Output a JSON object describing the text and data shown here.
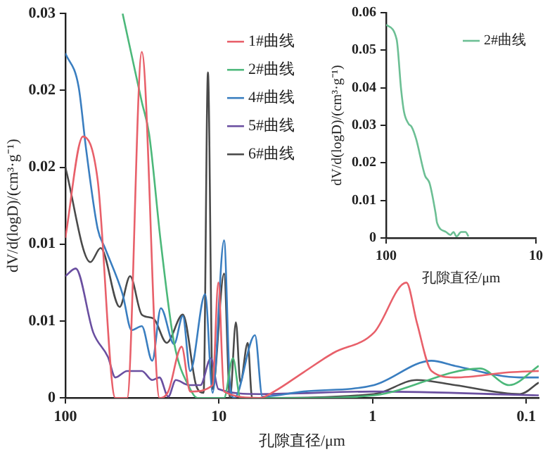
{
  "chart_data": [
    {
      "type": "line",
      "xlabel": "孔隙直径/μm",
      "ylabel": "dV/d(logD)/(cm³·g⁻¹)",
      "log": "x",
      "marker": "none",
      "legend": "top",
      "grid": false,
      "xlim": [
        100,
        0.083
      ],
      "xticks": [
        100,
        10,
        1,
        0.1
      ],
      "ylim": [
        0,
        0.03
      ],
      "yticks": [
        0,
        {
          "value": 0.006,
          "label": "0.01"
        },
        {
          "value": 0.012,
          "label": "0.01"
        },
        {
          "value": 0.018,
          "label": "0.02"
        },
        {
          "value": 0.024,
          "label": "0.02"
        },
        0.03
      ],
      "series": [
        {
          "name": "1#曲线",
          "color": "#e8606a",
          "x": [
            100,
            76.8,
            61.6,
            47.3,
            39.6,
            31.8,
            24.4,
            21.4,
            17.5,
            15.4,
            11.0,
            10.1,
            9.27,
            5.45,
            4.38,
            2.82,
            1.81,
            0.98,
            0.603,
            0.516,
            0.414,
            0.291,
            0.129,
            0.083
          ],
          "values": [
            0.0125,
            0.0204,
            0.017,
            0,
            0,
            0.027,
            0,
            0.0005,
            0.004,
            0.0005,
            0.001,
            0.009,
            0.0005,
            0,
            0.0005,
            0.002,
            0.0035,
            0.0051,
            0.009,
            0.0059,
            0.0021,
            0.0016,
            0.002,
            0.0021
          ]
        },
        {
          "name": "2#曲线",
          "color": "#4cb87a",
          "x": [
            42.4,
            31.8,
            28.5,
            23.9,
            19.6,
            15.4,
            13.8,
            9.27,
            8.11,
            7.26,
            2.82,
            0.98,
            0.2,
            0.129,
            0.083
          ],
          "values": [
            0.03,
            0.0231,
            0.0206,
            0.0121,
            0.0043,
            0.0007,
            0,
            0,
            0.0031,
            0,
            0,
            0.0002,
            0.0023,
            0.001,
            0.0025
          ]
        },
        {
          "name": "4#曲线",
          "color": "#3a7ec0",
          "x": [
            100,
            82,
            73.4,
            61.6,
            55.2,
            42.4,
            37.1,
            31.8,
            27.2,
            23.9,
            19.6,
            17.2,
            15.4,
            12.3,
            11.0,
            9.27,
            8.48,
            7.94,
            5.83,
            5.22,
            2.82,
            0.98,
            0.414,
            0.291,
            0.11,
            0.083
          ],
          "values": [
            0.0269,
            0.0243,
            0.0195,
            0.0132,
            0.0117,
            0.0081,
            0.0053,
            0.0056,
            0.0029,
            0.007,
            0.0042,
            0.0064,
            0.0021,
            0.0081,
            0.0004,
            0.0123,
            0.001,
            0,
            0.0049,
            0.0001,
            0.0005,
            0.001,
            0.0029,
            0.0025,
            0.0016,
            0.0016
          ]
        },
        {
          "name": "5#曲线",
          "color": "#6a4fa0",
          "x": [
            100,
            85.7,
            65.8,
            52.8,
            47.3,
            39.6,
            31.8,
            27.2,
            24.4,
            21.4,
            19.1,
            15.7,
            13.2,
            11.3,
            10.1,
            5.45,
            0.98,
            0.083
          ],
          "values": [
            0.0095,
            0.0101,
            0.0051,
            0.0032,
            0.0016,
            0.0021,
            0.0021,
            0.0014,
            0.0016,
            0.0001,
            0.0014,
            0.001,
            0.001,
            0.0031,
            0.0007,
            0.0003,
            0.0005,
            0.0002
          ]
        },
        {
          "name": "6#曲线",
          "color": "#4a4a4a",
          "x": [
            100,
            68.7,
            58.9,
            44.3,
            37.9,
            31.8,
            26.7,
            21.9,
            17.2,
            14.1,
            12.6,
            11.8,
            11.0,
            9.27,
            8.48,
            7.76,
            7.26,
            6.5,
            6.09,
            0.98,
            0.516,
            0.291,
            0.11,
            0.083
          ],
          "values": [
            0.018,
            0.0106,
            0.0117,
            0.0071,
            0.0095,
            0.0065,
            0.0062,
            0.0043,
            0.0065,
            0.001,
            0.0004,
            0.0254,
            0.0007,
            0.0097,
            0,
            0.0059,
            0.0012,
            0.0043,
            0,
            0.0003,
            0.0014,
            0.001,
            0.0003,
            0.0012
          ]
        }
      ]
    },
    {
      "type": "line",
      "xlabel": "孔隙直径/μm",
      "ylabel": "dV/d(logD)/(cm³·g⁻¹)",
      "log": "x",
      "marker": "none",
      "legend": "top right",
      "grid": false,
      "xlim": [
        100,
        10
      ],
      "xticks": [
        100,
        10
      ],
      "ylim": [
        0,
        0.06
      ],
      "yticks": [
        0,
        0.01,
        0.02,
        0.03,
        0.04,
        0.05,
        0.06
      ],
      "series": [
        {
          "name": "2#曲线",
          "color": "#6cbf94",
          "x": [
            100,
            85.1,
            79.4,
            75.9,
            70.8,
            67.6,
            63.1,
            55.0,
            51.3,
            46.8,
            45.7,
            39.8,
            37.2,
            35.5,
            33.9,
            31.6,
            29.5,
            28.2
          ],
          "values": [
            0.0568,
            0.0529,
            0.0395,
            0.0335,
            0.0304,
            0.0296,
            0.0264,
            0.0166,
            0.0146,
            0.0067,
            0.004,
            0.0016,
            0.0008,
            0.0016,
            0.0004,
            0.0016,
            0.0016,
            0.0004
          ]
        }
      ]
    }
  ]
}
